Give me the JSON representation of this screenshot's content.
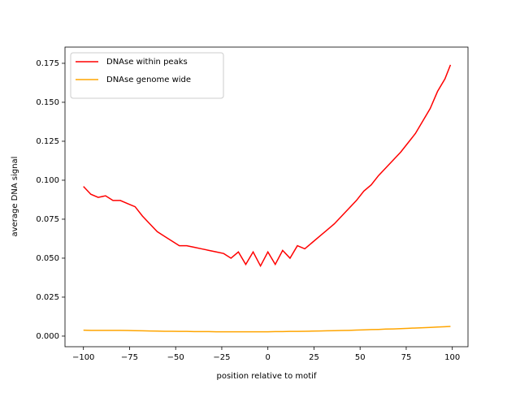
{
  "chart_data": {
    "type": "line",
    "xlabel": "position relative to motif",
    "ylabel": "average DNA signal",
    "x": [
      -100,
      -96,
      -92,
      -88,
      -84,
      -80,
      -76,
      -72,
      -68,
      -64,
      -60,
      -56,
      -52,
      -48,
      -44,
      -40,
      -36,
      -32,
      -28,
      -24,
      -20,
      -16,
      -12,
      -8,
      -4,
      0,
      4,
      8,
      12,
      16,
      20,
      24,
      28,
      32,
      36,
      40,
      44,
      48,
      52,
      56,
      60,
      64,
      68,
      72,
      76,
      80,
      84,
      88,
      92,
      96,
      99
    ],
    "series": [
      {
        "name": "DNAse within peaks",
        "color": "#ff0000",
        "values": [
          0.096,
          0.091,
          0.089,
          0.09,
          0.087,
          0.087,
          0.085,
          0.083,
          0.077,
          0.072,
          0.067,
          0.064,
          0.061,
          0.058,
          0.058,
          0.057,
          0.056,
          0.055,
          0.054,
          0.053,
          0.05,
          0.054,
          0.046,
          0.054,
          0.045,
          0.054,
          0.046,
          0.055,
          0.05,
          0.058,
          0.056,
          0.06,
          0.064,
          0.068,
          0.072,
          0.077,
          0.082,
          0.087,
          0.093,
          0.097,
          0.103,
          0.108,
          0.113,
          0.118,
          0.124,
          0.13,
          0.138,
          0.146,
          0.157,
          0.165,
          0.174
        ]
      },
      {
        "name": "DNAse genome wide",
        "color": "#ffa500",
        "values": [
          0.0038,
          0.0037,
          0.0037,
          0.0037,
          0.0037,
          0.0037,
          0.0036,
          0.0035,
          0.0034,
          0.0033,
          0.0032,
          0.0031,
          0.0031,
          0.003,
          0.003,
          0.0029,
          0.0029,
          0.0029,
          0.0028,
          0.0028,
          0.0028,
          0.0028,
          0.0028,
          0.0028,
          0.0028,
          0.0028,
          0.0029,
          0.0029,
          0.003,
          0.003,
          0.0031,
          0.0032,
          0.0033,
          0.0034,
          0.0035,
          0.0036,
          0.0037,
          0.0039,
          0.004,
          0.0042,
          0.0043,
          0.0045,
          0.0046,
          0.0048,
          0.005,
          0.0052,
          0.0054,
          0.0056,
          0.0058,
          0.006,
          0.0062
        ]
      }
    ],
    "xlim": [
      -110,
      108.5
    ],
    "ylim": [
      -0.0068,
      0.1854
    ],
    "xticks": [
      {
        "value": -100,
        "label": "−100"
      },
      {
        "value": -75,
        "label": "−75"
      },
      {
        "value": -50,
        "label": "−50"
      },
      {
        "value": -25,
        "label": "−25"
      },
      0,
      25,
      50,
      75,
      100
    ],
    "yticks": [
      {
        "value": 0,
        "label": "0.000"
      },
      0.025,
      {
        "value": 0.05,
        "label": "0.050"
      },
      0.075,
      {
        "value": 0.1,
        "label": "0.100"
      },
      0.125,
      {
        "value": 0.15,
        "label": "0.150"
      },
      0.175
    ],
    "legend": "upper left",
    "grid": false
  }
}
